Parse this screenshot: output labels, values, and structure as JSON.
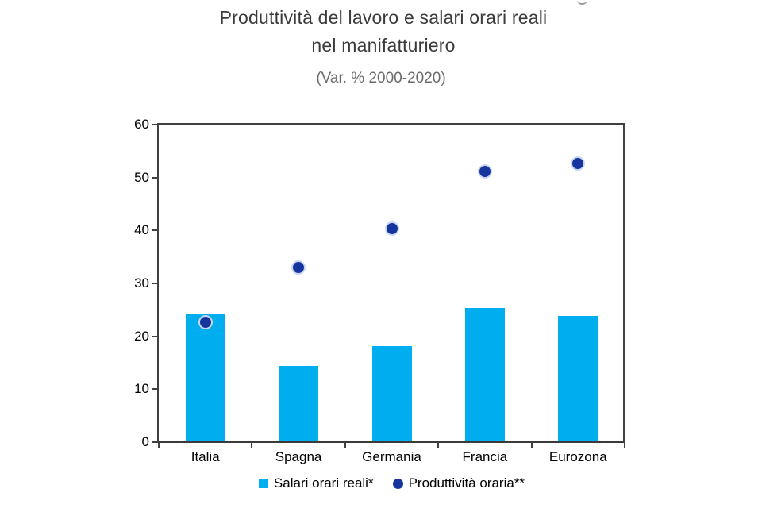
{
  "header": {
    "title_line1": "Produttività del lavoro e salari orari reali",
    "title_line2": "nel manifatturiero",
    "subtitle": "(Var. % 2000-2020)"
  },
  "chart_data": {
    "type": "bar",
    "title": "Produttività del lavoro e salari orari reali nel manifatturiero",
    "subtitle": "(Var. % 2000-2020)",
    "categories": [
      "Italia",
      "Spagna",
      "Germania",
      "Francia",
      "Eurozona"
    ],
    "series": [
      {
        "name": "Salari orari reali*",
        "type": "bar",
        "color": "#00AEEF",
        "values": [
          24.3,
          14.4,
          18.1,
          25.3,
          23.9
        ]
      },
      {
        "name": "Produttività oraria**",
        "type": "point",
        "color": "#16349E",
        "values": [
          22.7,
          33.0,
          40.3,
          51.1,
          52.7
        ]
      }
    ],
    "xlabel": "",
    "ylabel": "",
    "ylim": [
      0,
      60
    ],
    "ytick_step": 10,
    "grid": false,
    "legend_position": "bottom"
  },
  "colors": {
    "bar": "#00AEEF",
    "point": "#16349E",
    "axis": "#404040",
    "title_text": "#3b3b3b",
    "subtitle_text": "#6b6b6b"
  }
}
